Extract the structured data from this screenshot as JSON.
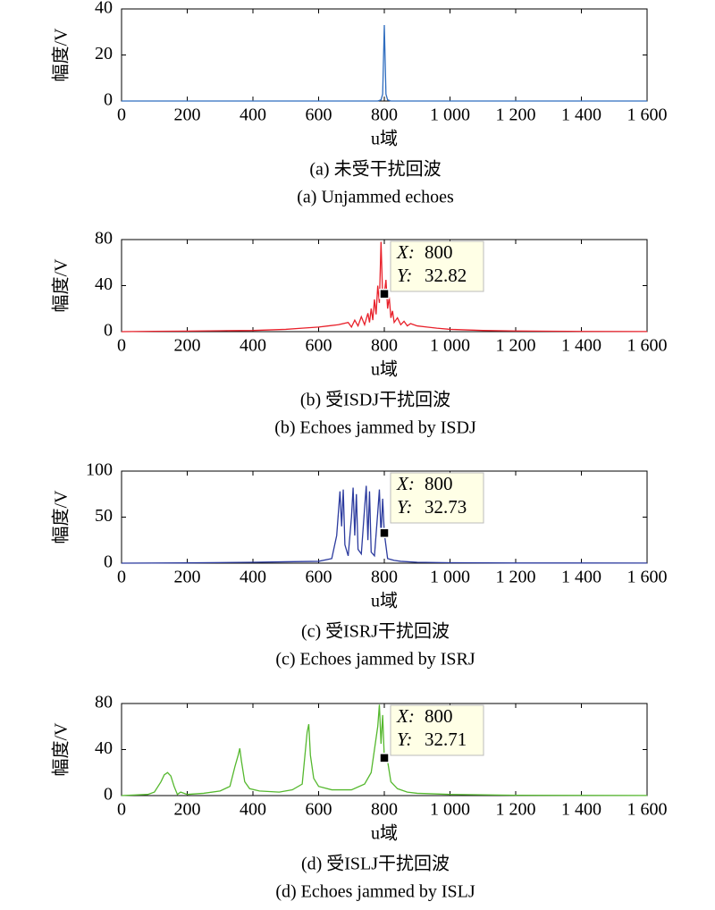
{
  "chart_data": [
    {
      "type": "line",
      "title": "(a) 未受干扰回波",
      "subtitle": "(a) Unjammed echoes",
      "xlabel": "u域",
      "ylabel": "幅度/V",
      "xlim": [
        0,
        1600
      ],
      "ylim": [
        0,
        40
      ],
      "xticks": [
        0,
        200,
        400,
        600,
        800,
        {
          "value": 1000,
          "label": "1 000"
        },
        {
          "value": 1200,
          "label": "1 200"
        },
        {
          "value": 1400,
          "label": "1 400"
        },
        {
          "value": 1600,
          "label": "1 600"
        }
      ],
      "yticks": [
        0,
        20,
        40
      ],
      "series": [
        {
          "color": "#2f6dbf",
          "x": [
            0,
            780,
            790,
            795,
            800,
            805,
            810,
            820,
            1600
          ],
          "values": [
            0,
            0,
            0.5,
            3,
            33,
            3,
            0.5,
            0,
            0
          ]
        }
      ]
    },
    {
      "type": "line",
      "title": "(b) 受ISDJ干扰回波",
      "subtitle": "(b) Echoes jammed by ISDJ",
      "xlabel": "u域",
      "ylabel": "幅度/V",
      "xlim": [
        0,
        1600
      ],
      "ylim": [
        0,
        80
      ],
      "xticks": [
        0,
        200,
        400,
        600,
        800,
        {
          "value": 1000,
          "label": "1 000"
        },
        {
          "value": 1200,
          "label": "1 200"
        },
        {
          "value": 1400,
          "label": "1 400"
        },
        {
          "value": 1600,
          "label": "1 600"
        }
      ],
      "yticks": [
        0,
        40,
        80
      ],
      "series": [
        {
          "color": "#e8202a",
          "x": [
            0,
            100,
            200,
            300,
            400,
            450,
            500,
            550,
            600,
            630,
            660,
            690,
            700,
            710,
            720,
            730,
            740,
            750,
            755,
            760,
            765,
            770,
            775,
            780,
            785,
            790,
            795,
            800,
            805,
            810,
            815,
            820,
            825,
            830,
            840,
            850,
            860,
            870,
            880,
            900,
            930,
            960,
            1000,
            1050,
            1100,
            1200,
            1300,
            1400,
            1600
          ],
          "values": [
            0,
            0.3,
            0.5,
            0.8,
            1,
            1.5,
            2,
            3,
            4,
            5,
            6,
            8,
            4,
            10,
            5,
            13,
            6,
            16,
            8,
            20,
            10,
            28,
            15,
            40,
            25,
            78,
            30,
            32.82,
            45,
            20,
            30,
            12,
            18,
            8,
            12,
            6,
            9,
            5,
            7,
            5,
            4,
            3,
            2,
            1.5,
            1,
            0.6,
            0.4,
            0.2,
            0.1
          ]
        }
      ],
      "datatip": [
        {
          "label": "X:",
          "value": 800
        },
        {
          "label": "Y:",
          "value": 32.82
        }
      ]
    },
    {
      "type": "line",
      "title": "(c) 受ISRJ干扰回波",
      "subtitle": "(c) Echoes jammed  by ISRJ",
      "xlabel": "u域",
      "ylabel": "幅度/V",
      "xlim": [
        0,
        1600
      ],
      "ylim": [
        0,
        100
      ],
      "xticks": [
        0,
        200,
        400,
        600,
        800,
        {
          "value": 1000,
          "label": "1 000"
        },
        {
          "value": 1200,
          "label": "1 200"
        },
        {
          "value": 1400,
          "label": "1 400"
        },
        {
          "value": 1600,
          "label": "1 600"
        }
      ],
      "yticks": [
        0,
        50,
        100
      ],
      "series": [
        {
          "color": "#2b3a9e",
          "x": [
            0,
            200,
            400,
            500,
            600,
            640,
            655,
            665,
            670,
            675,
            680,
            690,
            700,
            705,
            710,
            715,
            720,
            730,
            740,
            745,
            750,
            755,
            760,
            770,
            780,
            785,
            790,
            795,
            800,
            810,
            830,
            850,
            900,
            1000,
            1200,
            1600
          ],
          "values": [
            0,
            0.3,
            1,
            1.5,
            2,
            5,
            30,
            78,
            40,
            80,
            20,
            8,
            50,
            82,
            30,
            75,
            15,
            10,
            60,
            84,
            25,
            78,
            12,
            8,
            55,
            80,
            30,
            70,
            32.73,
            5,
            3,
            2,
            1,
            0.5,
            0.2,
            0.1
          ]
        }
      ],
      "datatip": [
        {
          "label": "X:",
          "value": 800
        },
        {
          "label": "Y:",
          "value": 32.73
        }
      ]
    },
    {
      "type": "line",
      "title": "(d) 受ISLJ干扰回波",
      "subtitle": "(d) Echoes jammed by ISLJ",
      "xlabel": "u域",
      "ylabel": "幅度/V",
      "xlim": [
        0,
        1600
      ],
      "ylim": [
        0,
        80
      ],
      "xticks": [
        0,
        200,
        400,
        600,
        800,
        {
          "value": 1000,
          "label": "1 000"
        },
        {
          "value": 1200,
          "label": "1 200"
        },
        {
          "value": 1400,
          "label": "1 400"
        },
        {
          "value": 1600,
          "label": "1 600"
        }
      ],
      "yticks": [
        0,
        40,
        80
      ],
      "series": [
        {
          "color": "#55b82e",
          "x": [
            0,
            80,
            100,
            120,
            130,
            140,
            150,
            160,
            170,
            180,
            200,
            250,
            300,
            330,
            345,
            355,
            360,
            365,
            375,
            390,
            420,
            480,
            520,
            550,
            560,
            565,
            570,
            575,
            585,
            600,
            640,
            700,
            740,
            760,
            770,
            780,
            785,
            790,
            795,
            800,
            810,
            820,
            840,
            870,
            900,
            1000,
            1200,
            1600
          ],
          "values": [
            0,
            1,
            3,
            12,
            18,
            20,
            17,
            8,
            1,
            3,
            1,
            2,
            4,
            8,
            25,
            35,
            41,
            30,
            12,
            6,
            4,
            3,
            5,
            10,
            40,
            55,
            62,
            35,
            15,
            8,
            5,
            5,
            10,
            20,
            40,
            60,
            79,
            45,
            70,
            32.71,
            30,
            12,
            6,
            3,
            2,
            1,
            0.3,
            0.1
          ]
        }
      ],
      "datatip": [
        {
          "label": "X:",
          "value": 800
        },
        {
          "label": "Y:",
          "value": 32.71
        }
      ]
    }
  ]
}
